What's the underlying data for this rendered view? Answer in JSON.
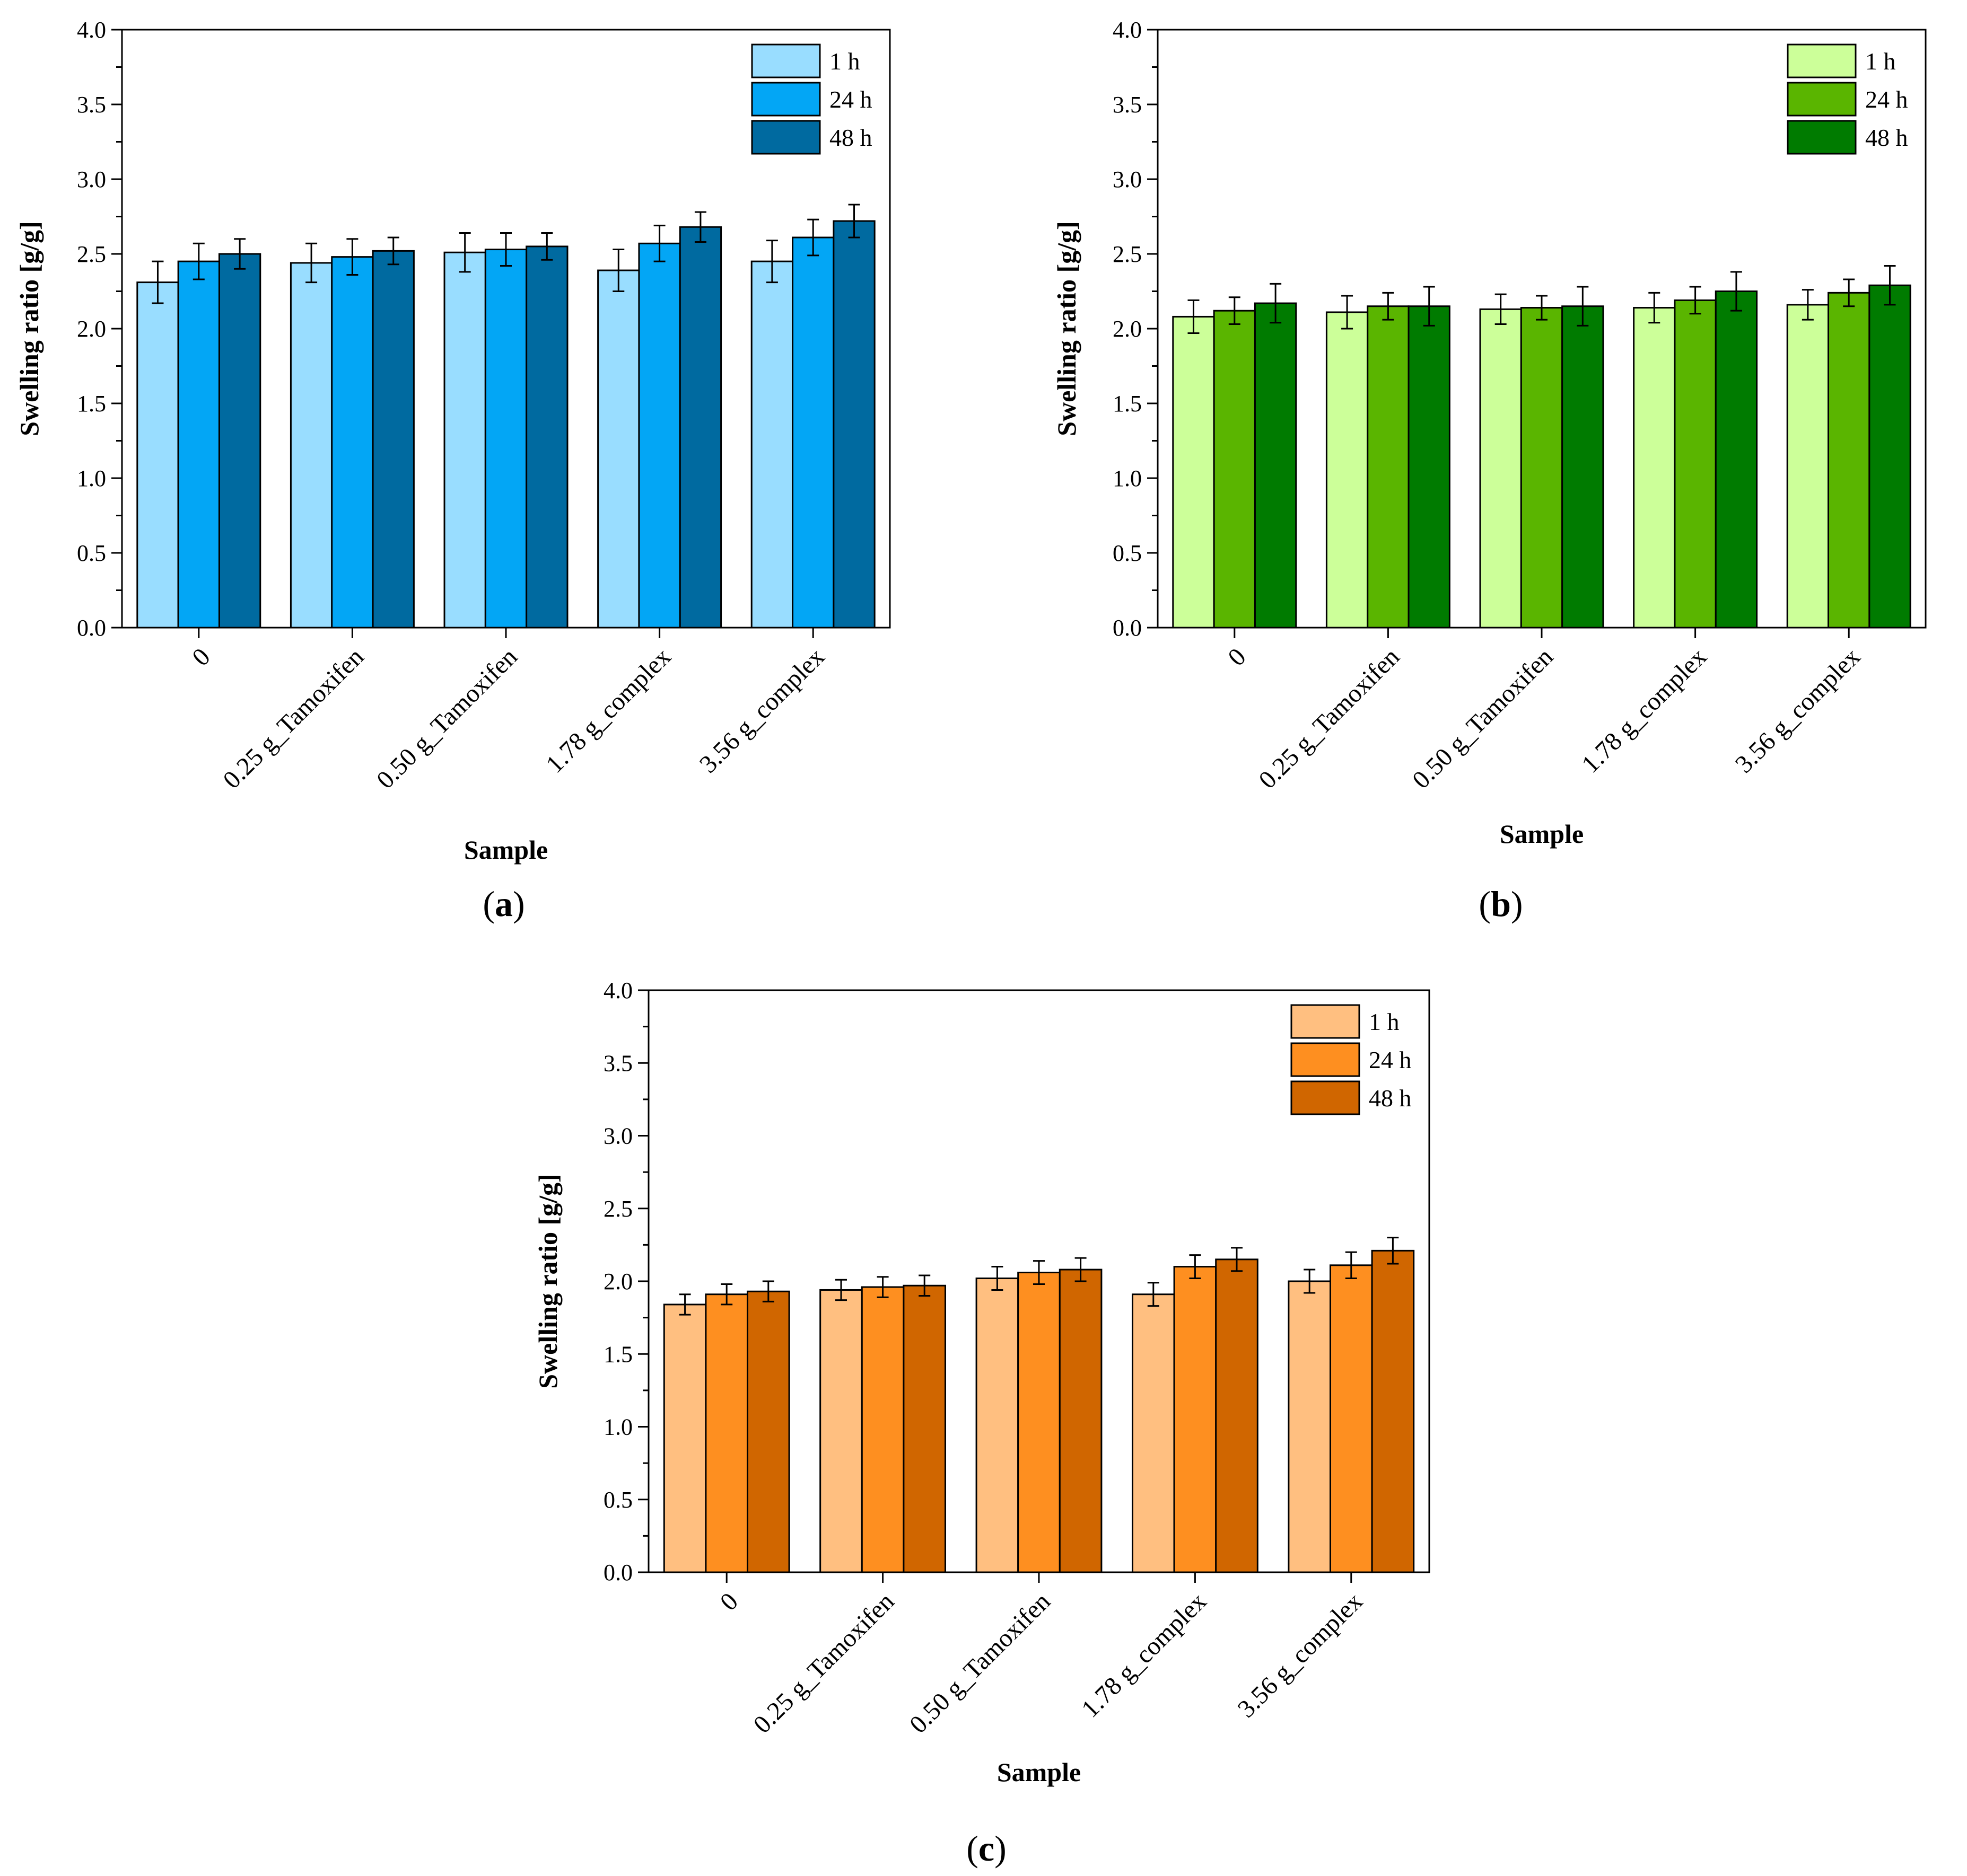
{
  "chart_data": [
    {
      "type": "bar",
      "panel_label": "(a)",
      "panel_letter": "a",
      "xlabel": "Sample",
      "ylabel": "Swelling ratio [g/g]",
      "ylim": [
        0,
        4.0
      ],
      "yticks": [
        "0.0",
        "0.5",
        "1.0",
        "1.5",
        "2.0",
        "2.5",
        "3.0",
        "3.5",
        "4.0"
      ],
      "categories": [
        "0",
        "0.25 g_Tamoxifen",
        "0.50 g_Tamoxifen",
        "1.78 g_complex",
        "3.56 g_complex"
      ],
      "legend_position": "top-right",
      "series": [
        {
          "name": "1 h",
          "color": "#99ddff",
          "values": [
            2.31,
            2.44,
            2.51,
            2.39,
            2.45
          ],
          "errors": [
            0.14,
            0.13,
            0.13,
            0.14,
            0.14
          ]
        },
        {
          "name": "24 h",
          "color": "#03a6f5",
          "values": [
            2.45,
            2.48,
            2.53,
            2.57,
            2.61
          ],
          "errors": [
            0.12,
            0.12,
            0.11,
            0.12,
            0.12
          ]
        },
        {
          "name": "48 h",
          "color": "#006aa0",
          "values": [
            2.5,
            2.52,
            2.55,
            2.68,
            2.72
          ],
          "errors": [
            0.1,
            0.09,
            0.09,
            0.1,
            0.11
          ]
        }
      ]
    },
    {
      "type": "bar",
      "panel_label": "(b)",
      "panel_letter": "b",
      "xlabel": "Sample",
      "ylabel": "Swelling ratio [g/g]",
      "ylim": [
        0,
        4.0
      ],
      "yticks": [
        "0.0",
        "0.5",
        "1.0",
        "1.5",
        "2.0",
        "2.5",
        "3.0",
        "3.5",
        "4.0"
      ],
      "categories": [
        "0",
        "0.25 g_Tamoxifen",
        "0.50 g_Tamoxifen",
        "1.78 g_complex",
        "3.56 g_complex"
      ],
      "legend_position": "top-right",
      "series": [
        {
          "name": "1 h",
          "color": "#ccff99",
          "values": [
            2.08,
            2.11,
            2.13,
            2.14,
            2.16
          ],
          "errors": [
            0.11,
            0.11,
            0.1,
            0.1,
            0.1
          ]
        },
        {
          "name": "24 h",
          "color": "#5ab500",
          "values": [
            2.12,
            2.15,
            2.14,
            2.19,
            2.24
          ],
          "errors": [
            0.09,
            0.09,
            0.08,
            0.09,
            0.09
          ]
        },
        {
          "name": "48 h",
          "color": "#007b00",
          "values": [
            2.17,
            2.15,
            2.15,
            2.25,
            2.29
          ],
          "errors": [
            0.13,
            0.13,
            0.13,
            0.13,
            0.13
          ]
        }
      ]
    },
    {
      "type": "bar",
      "panel_label": "(c)",
      "panel_letter": "c",
      "xlabel": "Sample",
      "ylabel": "Swelling ratio [g/g]",
      "ylim": [
        0,
        4.0
      ],
      "yticks": [
        "0.0",
        "0.5",
        "1.0",
        "1.5",
        "2.0",
        "2.5",
        "3.0",
        "3.5",
        "4.0"
      ],
      "categories": [
        "0",
        "0.25 g_Tamoxifen",
        "0.50 g_Tamoxifen",
        "1.78 g_complex",
        "3.56 g_complex"
      ],
      "legend_position": "top-right",
      "series": [
        {
          "name": "1 h",
          "color": "#ffbf80",
          "values": [
            1.84,
            1.94,
            2.02,
            1.91,
            2.0
          ],
          "errors": [
            0.07,
            0.07,
            0.08,
            0.08,
            0.08
          ]
        },
        {
          "name": "24 h",
          "color": "#fe8f20",
          "values": [
            1.91,
            1.96,
            2.06,
            2.1,
            2.11
          ],
          "errors": [
            0.07,
            0.07,
            0.08,
            0.08,
            0.09
          ]
        },
        {
          "name": "48 h",
          "color": "#d06600",
          "values": [
            1.93,
            1.97,
            2.08,
            2.15,
            2.21
          ],
          "errors": [
            0.07,
            0.07,
            0.08,
            0.08,
            0.09
          ]
        }
      ]
    }
  ]
}
